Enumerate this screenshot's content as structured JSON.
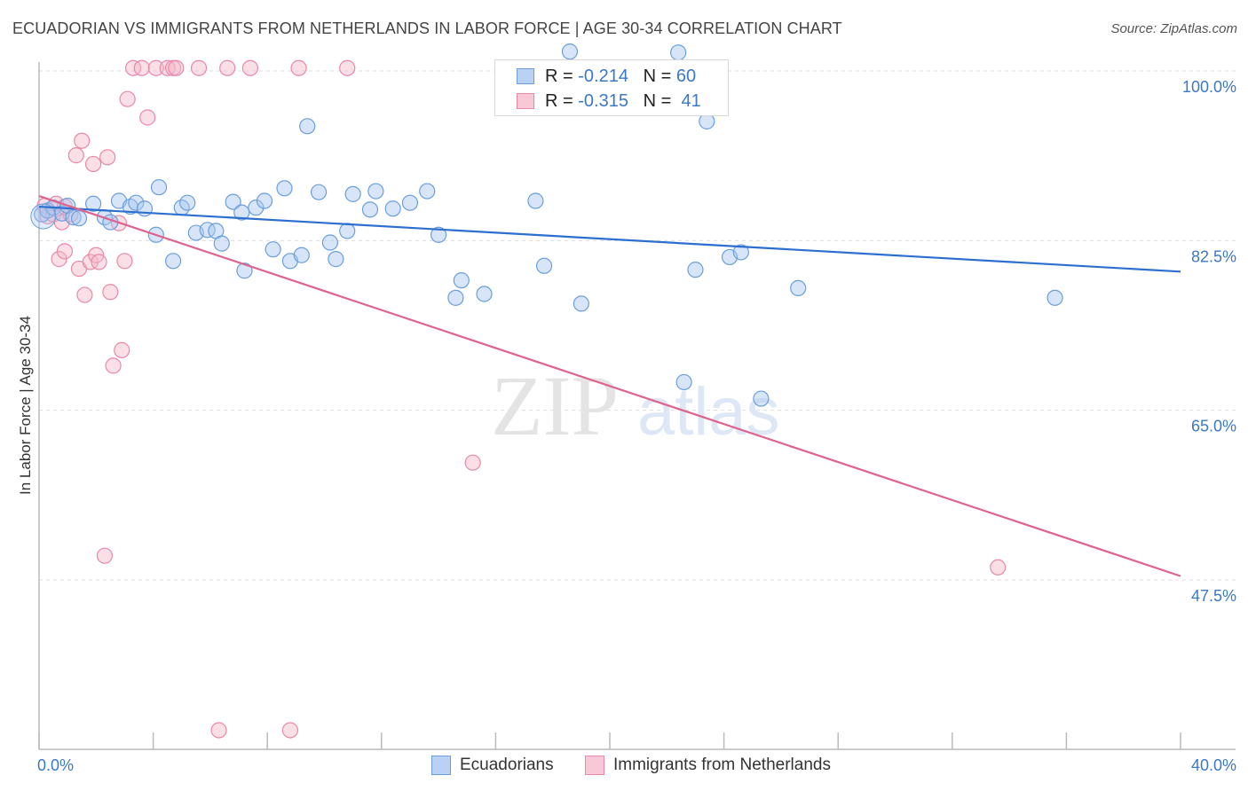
{
  "title": "ECUADORIAN VS IMMIGRANTS FROM NETHERLANDS IN LABOR FORCE | AGE 30-34 CORRELATION CHART",
  "source": "Source: ZipAtlas.com",
  "watermark": {
    "part1": "ZIP",
    "part2": "atlas"
  },
  "legend_top": {
    "rows": [
      {
        "r_label": "R =",
        "r_value": "-0.214",
        "n_label": "N =",
        "n_value": "60"
      },
      {
        "r_label": "R =",
        "r_value": "-0.315",
        "n_label": "N =",
        "n_value": "41"
      }
    ]
  },
  "legend_bottom": {
    "items": [
      {
        "label": "Ecuadorians"
      },
      {
        "label": "Immigrants from Netherlands"
      }
    ]
  },
  "colors": {
    "blue_fill": "#a9c6ef",
    "blue_stroke": "#6a9fdc",
    "blue_line": "#2c6fcf",
    "pink_fill": "#f5b7c9",
    "pink_stroke": "#e889a8",
    "pink_line": "#e0628e",
    "tick_label": "#3b78c6",
    "grid": "#dddddd",
    "axis": "#bbbbbb"
  },
  "chart_data": {
    "type": "scatter",
    "ylabel": "In Labor Force | Age 30-34",
    "xlabel": "",
    "xlim": [
      0,
      40
    ],
    "ylim": [
      31,
      103
    ],
    "x_tick_labels": [
      "0.0%",
      "40.0%"
    ],
    "y_ticks": [
      100,
      82.5,
      65,
      47.5
    ],
    "y_tick_labels": [
      "100.0%",
      "82.5%",
      "65.0%",
      "47.5%"
    ],
    "grid": true,
    "legend_position": "top-center",
    "series": [
      {
        "name": "Ecuadorians",
        "color": "#a9c6ef",
        "trend": {
          "x": [
            0,
            40
          ],
          "y": [
            86.0,
            79.3
          ]
        },
        "points": [
          [
            0.1,
            85.2
          ],
          [
            0.3,
            85.6
          ],
          [
            0.5,
            85.9
          ],
          [
            0.8,
            85.3
          ],
          [
            1.0,
            86.1
          ],
          [
            1.2,
            84.9
          ],
          [
            1.4,
            84.8
          ],
          [
            1.9,
            86.3
          ],
          [
            2.3,
            84.9
          ],
          [
            2.5,
            84.4
          ],
          [
            2.8,
            86.6
          ],
          [
            3.2,
            86.0
          ],
          [
            3.4,
            86.4
          ],
          [
            3.7,
            85.8
          ],
          [
            4.1,
            83.1
          ],
          [
            4.2,
            88.0
          ],
          [
            4.7,
            80.4
          ],
          [
            5.0,
            85.9
          ],
          [
            5.2,
            86.4
          ],
          [
            5.5,
            83.3
          ],
          [
            5.9,
            83.6
          ],
          [
            6.2,
            83.5
          ],
          [
            6.4,
            82.2
          ],
          [
            6.8,
            86.5
          ],
          [
            7.1,
            85.4
          ],
          [
            7.2,
            79.4
          ],
          [
            7.6,
            85.9
          ],
          [
            7.9,
            86.6
          ],
          [
            8.2,
            81.6
          ],
          [
            8.6,
            87.9
          ],
          [
            8.8,
            80.4
          ],
          [
            9.2,
            81.0
          ],
          [
            9.4,
            94.3
          ],
          [
            9.8,
            87.5
          ],
          [
            10.2,
            82.3
          ],
          [
            10.4,
            80.6
          ],
          [
            10.8,
            83.5
          ],
          [
            11.0,
            87.3
          ],
          [
            11.6,
            85.7
          ],
          [
            11.8,
            87.6
          ],
          [
            12.4,
            85.8
          ],
          [
            13.0,
            86.4
          ],
          [
            13.6,
            87.6
          ],
          [
            14.0,
            83.1
          ],
          [
            14.6,
            76.6
          ],
          [
            14.8,
            78.4
          ],
          [
            15.6,
            77.0
          ],
          [
            17.4,
            86.6
          ],
          [
            17.7,
            79.9
          ],
          [
            18.6,
            102.0
          ],
          [
            19.0,
            76.0
          ],
          [
            22.4,
            101.9
          ],
          [
            22.6,
            67.9
          ],
          [
            23.0,
            79.5
          ],
          [
            23.4,
            94.8
          ],
          [
            24.2,
            80.8
          ],
          [
            24.6,
            81.3
          ],
          [
            25.3,
            66.2
          ],
          [
            26.6,
            77.6
          ],
          [
            35.6,
            76.6
          ]
        ]
      },
      {
        "name": "Immigrants from Netherlands",
        "color": "#f5b7c9",
        "trend": {
          "x": [
            0,
            40
          ],
          "y": [
            87.1,
            47.9
          ]
        },
        "points": [
          [
            0.2,
            86.1
          ],
          [
            0.3,
            85.0
          ],
          [
            0.5,
            85.2
          ],
          [
            0.6,
            86.3
          ],
          [
            0.7,
            80.6
          ],
          [
            0.8,
            84.4
          ],
          [
            0.9,
            81.4
          ],
          [
            1.1,
            85.2
          ],
          [
            1.3,
            91.3
          ],
          [
            1.4,
            79.6
          ],
          [
            1.5,
            92.8
          ],
          [
            1.6,
            76.9
          ],
          [
            1.8,
            80.3
          ],
          [
            1.9,
            90.4
          ],
          [
            2.0,
            81.0
          ],
          [
            2.1,
            80.3
          ],
          [
            2.3,
            50.0
          ],
          [
            2.4,
            91.1
          ],
          [
            2.5,
            77.2
          ],
          [
            2.6,
            69.6
          ],
          [
            2.8,
            84.3
          ],
          [
            2.9,
            71.2
          ],
          [
            3.0,
            80.4
          ],
          [
            3.1,
            97.1
          ],
          [
            3.3,
            100.3
          ],
          [
            3.6,
            100.3
          ],
          [
            3.8,
            95.2
          ],
          [
            4.1,
            100.3
          ],
          [
            4.5,
            100.3
          ],
          [
            4.7,
            100.3
          ],
          [
            4.8,
            100.3
          ],
          [
            5.6,
            100.3
          ],
          [
            6.3,
            32.0
          ],
          [
            6.6,
            100.3
          ],
          [
            7.4,
            100.3
          ],
          [
            8.8,
            32.0
          ],
          [
            9.1,
            100.3
          ],
          [
            10.8,
            100.3
          ],
          [
            15.2,
            59.6
          ],
          [
            33.6,
            48.8
          ],
          [
            0.9,
            86.0
          ]
        ]
      }
    ]
  }
}
